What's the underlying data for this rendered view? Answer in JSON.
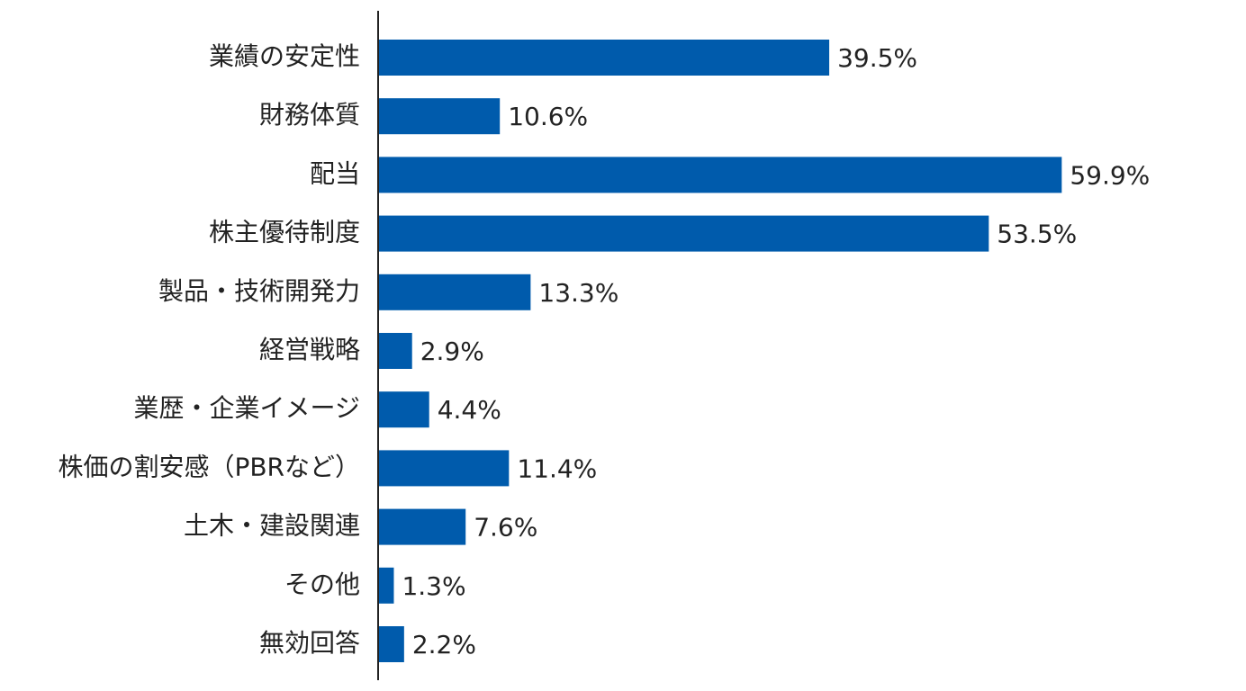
{
  "chart_data": {
    "type": "bar",
    "orientation": "horizontal",
    "categories": [
      "業績の安定性",
      "財務体質",
      "配当",
      "株主優待制度",
      "製品・技術開発力",
      "経営戦略",
      "業歴・企業イメージ",
      "株価の割安感（PBRなど）",
      "土木・建設関連",
      "その他",
      "無効回答"
    ],
    "values": [
      39.5,
      10.6,
      59.9,
      53.5,
      13.3,
      2.9,
      4.4,
      11.4,
      7.6,
      1.3,
      2.2
    ],
    "value_labels": [
      "39.5%",
      "10.6%",
      "59.9%",
      "53.5%",
      "13.3%",
      "2.9%",
      "4.4%",
      "11.4%",
      "7.6%",
      "1.3%",
      "2.2%"
    ],
    "color": "#005bac"
  }
}
